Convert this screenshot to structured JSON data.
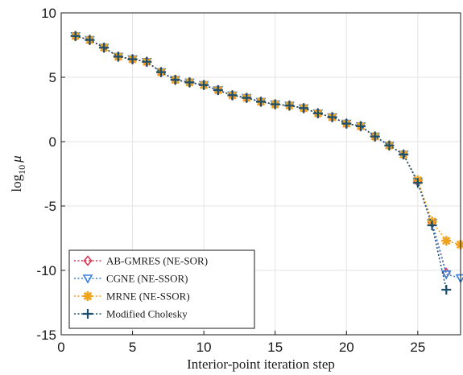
{
  "chart_data": {
    "type": "line",
    "xlabel": "Interior-point iteration step",
    "ylabel_main": "log",
    "ylabel_sub": "10",
    "ylabel_var": "μ",
    "xlim": [
      0,
      28
    ],
    "ylim": [
      -15,
      10
    ],
    "x_ticks": [
      0,
      5,
      10,
      15,
      20,
      25
    ],
    "y_ticks": [
      -15,
      -10,
      -5,
      0,
      5,
      10
    ],
    "x_tick_labels": [
      "0",
      "5",
      "10",
      "15",
      "20",
      "25"
    ],
    "y_tick_labels": [
      "-15",
      "-10",
      "-5",
      "0",
      "5",
      "10"
    ],
    "grid": true,
    "legend_position": "bottom-left",
    "series": [
      {
        "name": "AB-GMRES (NE-SOR)",
        "color": "#d62e4e",
        "marker": "diamond",
        "x": [
          1,
          2,
          3,
          4,
          5,
          6,
          7,
          8,
          9,
          10,
          11,
          12,
          13,
          14,
          15,
          16,
          17,
          18,
          19,
          20,
          21,
          22,
          23,
          24,
          25,
          26,
          27
        ],
        "y": [
          8.2,
          7.9,
          7.3,
          6.6,
          6.4,
          6.2,
          5.4,
          4.8,
          4.6,
          4.4,
          4.0,
          3.6,
          3.4,
          3.1,
          2.9,
          2.8,
          2.6,
          2.2,
          1.9,
          1.4,
          1.2,
          0.4,
          -0.3,
          -1.0,
          -3.1,
          -6.3,
          -10.2
        ]
      },
      {
        "name": "CGNE (NE-SSOR)",
        "color": "#3a7fd9",
        "marker": "triangle-down",
        "x": [
          1,
          2,
          3,
          4,
          5,
          6,
          7,
          8,
          9,
          10,
          11,
          12,
          13,
          14,
          15,
          16,
          17,
          18,
          19,
          20,
          21,
          22,
          23,
          24,
          25,
          26,
          27,
          28
        ],
        "y": [
          8.2,
          7.9,
          7.3,
          6.6,
          6.4,
          6.2,
          5.4,
          4.8,
          4.6,
          4.4,
          4.0,
          3.6,
          3.4,
          3.1,
          2.9,
          2.8,
          2.6,
          2.2,
          1.9,
          1.4,
          1.2,
          0.4,
          -0.3,
          -1.0,
          -3.1,
          -6.3,
          -10.3,
          -10.6
        ]
      },
      {
        "name": "MRNE (NE-SSOR)",
        "color": "#efa21c",
        "marker": "asterisk",
        "x": [
          1,
          2,
          3,
          4,
          5,
          6,
          7,
          8,
          9,
          10,
          11,
          12,
          13,
          14,
          15,
          16,
          17,
          18,
          19,
          20,
          21,
          22,
          23,
          24,
          25,
          26,
          27,
          28
        ],
        "y": [
          8.2,
          7.9,
          7.3,
          6.6,
          6.4,
          6.2,
          5.4,
          4.8,
          4.6,
          4.4,
          4.0,
          3.6,
          3.4,
          3.1,
          2.9,
          2.8,
          2.6,
          2.2,
          1.9,
          1.4,
          1.2,
          0.4,
          -0.3,
          -1.0,
          -3.0,
          -6.2,
          -7.7,
          -8.0
        ]
      },
      {
        "name": "Modified Cholesky",
        "color": "#1c4f6e",
        "marker": "plus",
        "x": [
          1,
          2,
          3,
          4,
          5,
          6,
          7,
          8,
          9,
          10,
          11,
          12,
          13,
          14,
          15,
          16,
          17,
          18,
          19,
          20,
          21,
          22,
          23,
          24,
          25,
          26,
          27
        ],
        "y": [
          8.2,
          7.9,
          7.3,
          6.6,
          6.4,
          6.2,
          5.4,
          4.8,
          4.6,
          4.4,
          4.0,
          3.6,
          3.4,
          3.1,
          2.9,
          2.8,
          2.6,
          2.2,
          1.9,
          1.4,
          1.2,
          0.4,
          -0.3,
          -1.0,
          -3.2,
          -6.5,
          -11.5
        ]
      }
    ]
  }
}
